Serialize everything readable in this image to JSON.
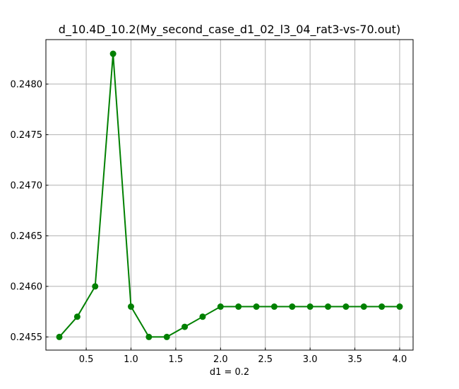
{
  "chart_data": {
    "type": "line",
    "title": "d_10.4D_10.2(My_second_case_d1_02_l3_04_rat3-vs-70.out)",
    "xlabel": "d1 = 0.2",
    "ylabel": "",
    "xlim": [
      0.05,
      4.15
    ],
    "ylim": [
      0.24537,
      0.24844
    ],
    "grid": true,
    "x_ticks": [
      0.5,
      1.0,
      1.5,
      2.0,
      2.5,
      3.0,
      3.5,
      4.0
    ],
    "x_tick_labels": [
      "0.5",
      "1.0",
      "1.5",
      "2.0",
      "2.5",
      "3.0",
      "3.5",
      "4.0"
    ],
    "y_ticks": [
      0.2455,
      0.246,
      0.2465,
      0.247,
      0.2475,
      0.248
    ],
    "y_tick_labels": [
      "0.2455",
      "0.2460",
      "0.2465",
      "0.2470",
      "0.2475",
      "0.2480"
    ],
    "series": [
      {
        "name": "series-1",
        "color": "#008000",
        "marker": "circle",
        "x": [
          0.2,
          0.4,
          0.6,
          0.8,
          1.0,
          1.2,
          1.4,
          1.6,
          1.8,
          2.0,
          2.2,
          2.4,
          2.6,
          2.8,
          3.0,
          3.2,
          3.4,
          3.6,
          3.8,
          4.0
        ],
        "y": [
          0.2455,
          0.2457,
          0.246,
          0.2483,
          0.2458,
          0.2455,
          0.2455,
          0.2456,
          0.2457,
          0.2458,
          0.2458,
          0.2458,
          0.2458,
          0.2458,
          0.2458,
          0.2458,
          0.2458,
          0.2458,
          0.2458,
          0.2458
        ]
      }
    ]
  }
}
